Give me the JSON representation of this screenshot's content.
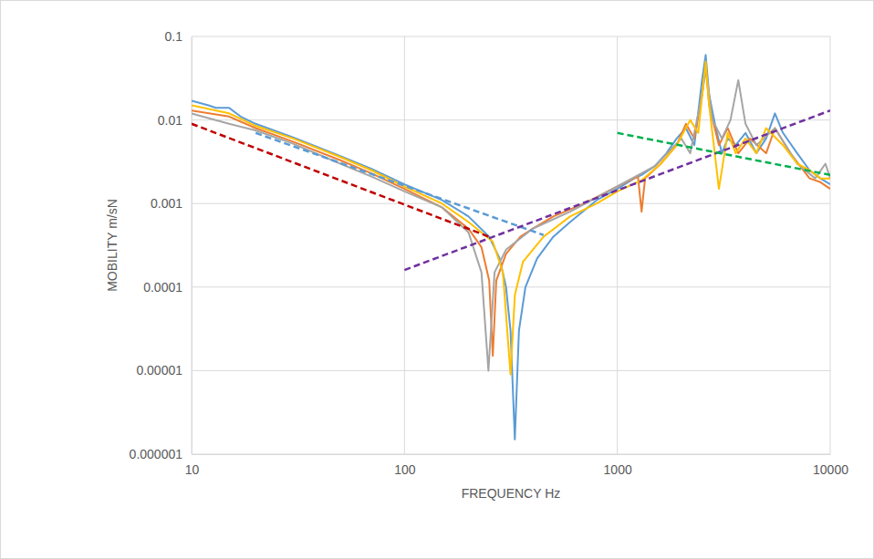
{
  "chart_data": {
    "type": "line",
    "x_label": "FREQUENCY Hz",
    "y_label": "MOBILITY m/sN",
    "log": true,
    "grid": true,
    "xlim": [
      10,
      10000
    ],
    "ylim": [
      1e-06,
      0.1
    ],
    "xticks": [
      10,
      100,
      1000,
      10000
    ],
    "yticks": [
      1e-06,
      1e-05,
      0.0001,
      0.001,
      0.01,
      0.1
    ],
    "series": [
      {
        "color": "#5b9bd5",
        "line_style": "solid",
        "x": [
          10,
          12,
          13,
          15,
          17,
          20,
          30,
          50,
          70,
          100,
          150,
          200,
          250,
          280,
          300,
          315,
          330,
          345,
          370,
          420,
          500,
          600,
          800,
          1000,
          1200,
          1300,
          1500,
          1700,
          1900,
          2100,
          2300,
          2500,
          2600,
          2700,
          2900,
          3100,
          3300,
          3600,
          4000,
          4500,
          5000,
          5500,
          6000,
          7000,
          8000,
          9000,
          10000
        ],
        "values": [
          0.017,
          0.015,
          0.014,
          0.014,
          0.011,
          0.009,
          0.0062,
          0.0037,
          0.0026,
          0.0017,
          0.0011,
          0.0007,
          0.0004,
          0.00022,
          0.0001,
          3e-05,
          1.5e-06,
          3e-05,
          0.0001,
          0.00022,
          0.0004,
          0.0006,
          0.0011,
          0.0015,
          0.002,
          0.0022,
          0.0028,
          0.004,
          0.006,
          0.008,
          0.005,
          0.03,
          0.06,
          0.02,
          0.008,
          0.004,
          0.006,
          0.005,
          0.007,
          0.004,
          0.006,
          0.012,
          0.007,
          0.004,
          0.0025,
          0.002,
          0.0017
        ]
      },
      {
        "color": "#ed7d31",
        "line_style": "solid",
        "x": [
          10,
          15,
          20,
          30,
          50,
          70,
          100,
          150,
          200,
          230,
          250,
          260,
          270,
          300,
          350,
          400,
          500,
          700,
          1000,
          1250,
          1300,
          1350,
          1600,
          1900,
          2100,
          2300,
          2500,
          2600,
          2700,
          3000,
          3300,
          3700,
          4200,
          5000,
          5500,
          6500,
          8000,
          9000,
          10000
        ],
        "values": [
          0.013,
          0.011,
          0.008,
          0.0055,
          0.0033,
          0.0023,
          0.0015,
          0.0009,
          0.0005,
          0.0003,
          0.00012,
          1.5e-05,
          0.00012,
          0.00025,
          0.0004,
          0.0005,
          0.0007,
          0.001,
          0.0016,
          0.0021,
          0.0008,
          0.002,
          0.003,
          0.005,
          0.009,
          0.006,
          0.02,
          0.045,
          0.015,
          0.005,
          0.008,
          0.004,
          0.006,
          0.004,
          0.008,
          0.004,
          0.002,
          0.0018,
          0.0015
        ]
      },
      {
        "color": "#a5a5a5",
        "line_style": "solid",
        "x": [
          10,
          15,
          20,
          30,
          50,
          70,
          100,
          150,
          200,
          230,
          248,
          265,
          300,
          400,
          600,
          1000,
          1500,
          2000,
          2200,
          2500,
          2600,
          2800,
          3100,
          3400,
          3700,
          4000,
          4500,
          5500,
          7000,
          8500,
          9500,
          10000
        ],
        "values": [
          0.012,
          0.009,
          0.0075,
          0.0052,
          0.003,
          0.0021,
          0.0014,
          0.0009,
          0.00045,
          0.00015,
          1e-05,
          0.00015,
          0.00028,
          0.0005,
          0.0008,
          0.0016,
          0.0028,
          0.006,
          0.004,
          0.02,
          0.04,
          0.01,
          0.006,
          0.01,
          0.03,
          0.009,
          0.005,
          0.008,
          0.003,
          0.002,
          0.003,
          0.002
        ]
      },
      {
        "color": "#ffc000",
        "line_style": "solid",
        "x": [
          10,
          15,
          20,
          30,
          50,
          70,
          100,
          150,
          200,
          260,
          290,
          315,
          330,
          360,
          450,
          600,
          800,
          1000,
          1300,
          1600,
          1900,
          2200,
          2400,
          2600,
          2700,
          3000,
          3300,
          3600,
          4000,
          4500,
          5000,
          6000,
          7000,
          8000,
          9000,
          10000
        ],
        "values": [
          0.015,
          0.012,
          0.0085,
          0.006,
          0.0036,
          0.0025,
          0.0016,
          0.001,
          0.0006,
          0.00035,
          0.00015,
          9e-06,
          8e-05,
          0.0002,
          0.0004,
          0.0007,
          0.001,
          0.0014,
          0.0019,
          0.003,
          0.005,
          0.01,
          0.007,
          0.05,
          0.015,
          0.0015,
          0.007,
          0.004,
          0.006,
          0.004,
          0.008,
          0.005,
          0.003,
          0.0025,
          0.002,
          0.002
        ]
      },
      {
        "color": "#5b9bd5",
        "line_style": "dashed",
        "x": [
          20,
          450
        ],
        "values": [
          0.007,
          0.00042
        ]
      },
      {
        "color": "#c00000",
        "line_style": "dashed",
        "x": [
          10,
          250
        ],
        "values": [
          0.009,
          0.0004
        ]
      },
      {
        "color": "#7030a0",
        "line_style": "dashed",
        "x": [
          100,
          10000
        ],
        "values": [
          0.00016,
          0.013
        ]
      },
      {
        "color": "#00b050",
        "line_style": "dashed",
        "x": [
          1000,
          10000
        ],
        "values": [
          0.007,
          0.0022
        ]
      }
    ]
  }
}
